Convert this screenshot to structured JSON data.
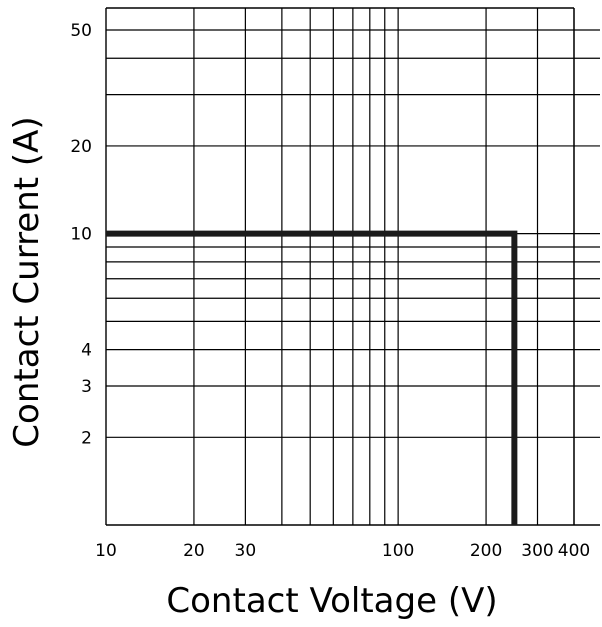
{
  "chart_data": {
    "type": "line",
    "xlabel": "Contact Voltage (V)",
    "ylabel": "Contact Current (A)",
    "x_scale": "log",
    "y_scale": "log",
    "xlim": [
      10,
      500
    ],
    "ylim": [
      1,
      60
    ],
    "grid": true,
    "x_ticks": [
      {
        "value": 10,
        "label": "10"
      },
      {
        "value": 20,
        "label": "20"
      },
      {
        "value": 30,
        "label": "30"
      },
      {
        "value": 100,
        "label": "100"
      },
      {
        "value": 200,
        "label": "200"
      },
      {
        "value": 300,
        "label": "300"
      },
      {
        "value": 400,
        "label": "400"
      }
    ],
    "y_ticks": [
      {
        "value": 2,
        "label": "2"
      },
      {
        "value": 3,
        "label": "3"
      },
      {
        "value": 4,
        "label": "4"
      },
      {
        "value": 10,
        "label": "10"
      },
      {
        "value": 20,
        "label": "20"
      },
      {
        "value": 50,
        "label": "50"
      }
    ],
    "x_grid": [
      20,
      30,
      40,
      50,
      60,
      70,
      80,
      90,
      100,
      200,
      300,
      400
    ],
    "y_grid": [
      2,
      3,
      4,
      5,
      6,
      7,
      8,
      9,
      10,
      20,
      30,
      40,
      50
    ],
    "series": [
      {
        "color": "#1a1a1a",
        "points": [
          {
            "x": 10,
            "y": 10
          },
          {
            "x": 250,
            "y": 10
          },
          {
            "x": 250,
            "y": 1
          }
        ]
      }
    ]
  }
}
